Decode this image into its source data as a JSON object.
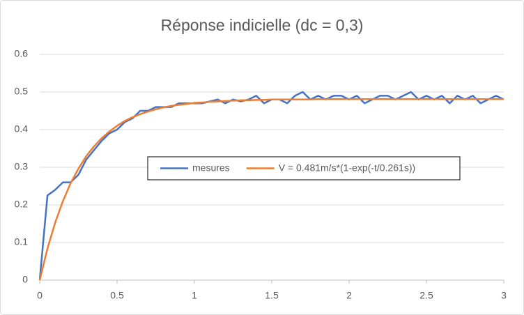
{
  "chart_data": {
    "type": "line",
    "title": "Réponse indicielle (dc = 0,3)",
    "x": [
      0,
      0.05,
      0.1,
      0.15,
      0.2,
      0.25,
      0.3,
      0.35,
      0.4,
      0.45,
      0.5,
      0.55,
      0.6,
      0.65,
      0.7,
      0.75,
      0.8,
      0.85,
      0.9,
      0.95,
      1,
      1.05,
      1.1,
      1.15,
      1.2,
      1.25,
      1.3,
      1.35,
      1.4,
      1.45,
      1.5,
      1.55,
      1.6,
      1.65,
      1.7,
      1.75,
      1.8,
      1.85,
      1.9,
      1.95,
      2,
      2.05,
      2.1,
      2.15,
      2.2,
      2.25,
      2.3,
      2.35,
      2.4,
      2.45,
      2.5,
      2.55,
      2.6,
      2.65,
      2.7,
      2.75,
      2.8,
      2.85,
      2.9,
      2.95,
      3
    ],
    "series": [
      {
        "name": "mesures",
        "color": "#4472c4",
        "values": [
          0,
          0.225,
          0.24,
          0.26,
          0.26,
          0.28,
          0.32,
          0.345,
          0.37,
          0.39,
          0.4,
          0.42,
          0.43,
          0.45,
          0.45,
          0.46,
          0.46,
          0.46,
          0.47,
          0.47,
          0.47,
          0.47,
          0.475,
          0.48,
          0.47,
          0.48,
          0.475,
          0.48,
          0.49,
          0.47,
          0.48,
          0.48,
          0.47,
          0.49,
          0.5,
          0.48,
          0.49,
          0.48,
          0.49,
          0.49,
          0.48,
          0.49,
          0.47,
          0.48,
          0.49,
          0.49,
          0.48,
          0.49,
          0.5,
          0.48,
          0.49,
          0.48,
          0.49,
          0.47,
          0.49,
          0.48,
          0.49,
          0.47,
          0.48,
          0.49,
          0.48
        ]
      },
      {
        "name": "V = 0.481m/s*(1-exp(-t/0.261s))",
        "color": "#ed7d31",
        "values": [
          0,
          0.084,
          0.153,
          0.21,
          0.258,
          0.296,
          0.329,
          0.355,
          0.377,
          0.395,
          0.41,
          0.423,
          0.433,
          0.441,
          0.448,
          0.454,
          0.459,
          0.463,
          0.466,
          0.468,
          0.471,
          0.472,
          0.474,
          0.475,
          0.476,
          0.477,
          0.478,
          0.478,
          0.479,
          0.479,
          0.48,
          0.48,
          0.48,
          0.48,
          0.48,
          0.48,
          0.481,
          0.481,
          0.481,
          0.481,
          0.481,
          0.481,
          0.481,
          0.481,
          0.481,
          0.481,
          0.481,
          0.481,
          0.481,
          0.481,
          0.481,
          0.481,
          0.481,
          0.481,
          0.481,
          0.481,
          0.481,
          0.481,
          0.481,
          0.481,
          0.481
        ]
      }
    ],
    "xlim": [
      0,
      3
    ],
    "xticks": [
      0,
      0.5,
      1,
      1.5,
      2,
      2.5,
      3
    ],
    "ylim": [
      0,
      0.6
    ],
    "yticks": [
      0,
      0.1,
      0.2,
      0.3,
      0.4,
      0.5,
      0.6
    ],
    "grid": true
  }
}
